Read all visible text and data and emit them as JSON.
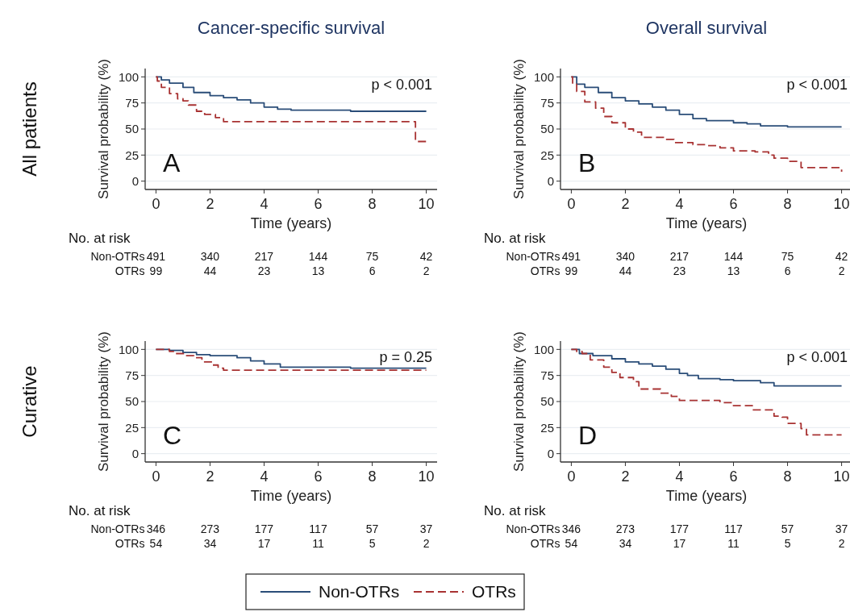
{
  "chart_data": [
    {
      "type": "step",
      "title": "Cancer-specific survival",
      "xlabel": "Time (years)",
      "ylabel": "Survival probability (%)",
      "xlim": [
        -0.4,
        10.4
      ],
      "ylim": [
        -8,
        108
      ],
      "xticks": [
        0,
        2,
        4,
        6,
        8,
        10
      ],
      "yticks": [
        0,
        25,
        50,
        75,
        100
      ],
      "grid": "y",
      "legend": "bottom",
      "marker": "none",
      "annotations": [
        "A",
        "p < 0.001",
        "No. at risk",
        "Non-OTRs",
        "491",
        "340",
        "217",
        "144",
        "75",
        "42",
        "OTRs",
        "99",
        "44",
        "23",
        "13",
        "6",
        "2",
        "All patients"
      ],
      "series": [
        {
          "name": "Non-OTRs",
          "color": "#2a4d78",
          "line_style": "solid",
          "x": [
            0,
            0.2,
            0.5,
            1,
            1.4,
            2,
            2.5,
            3,
            3.5,
            4,
            4.5,
            5,
            7.2,
            10
          ],
          "values": [
            100,
            97,
            94,
            90,
            85,
            82,
            80,
            78,
            75,
            71,
            69,
            68,
            67,
            67
          ]
        },
        {
          "name": "OTRs",
          "color": "#a83232",
          "line_style": "dashed",
          "x": [
            0,
            0.05,
            0.2,
            0.5,
            0.8,
            1,
            1.2,
            1.5,
            1.8,
            2.2,
            2.5,
            9.6,
            10
          ],
          "values": [
            100,
            96,
            90,
            84,
            79,
            77,
            73,
            67,
            64,
            61,
            57,
            38,
            38
          ]
        }
      ]
    },
    {
      "type": "step",
      "title": "Overall survival",
      "xlabel": "Time (years)",
      "ylabel": "Survival probability (%)",
      "xlim": [
        -0.4,
        10.4
      ],
      "ylim": [
        -8,
        108
      ],
      "xticks": [
        0,
        2,
        4,
        6,
        8,
        10
      ],
      "yticks": [
        0,
        25,
        50,
        75,
        100
      ],
      "grid": "y",
      "legend": false,
      "marker": "none",
      "annotations": [
        "B",
        "p < 0.001",
        "No. at risk",
        "Non-OTRs",
        "491",
        "340",
        "217",
        "144",
        "75",
        "42",
        "OTRs",
        "99",
        "44",
        "23",
        "13",
        "6",
        "2"
      ],
      "series": [
        {
          "color": "#2a4d78",
          "line_style": "solid",
          "x": [
            0,
            0.2,
            0.5,
            1,
            1.5,
            2,
            2.5,
            3,
            3.5,
            4,
            4.5,
            5,
            6,
            6.5,
            7,
            8,
            10
          ],
          "values": [
            100,
            93,
            90,
            85,
            80,
            77,
            74,
            71,
            68,
            64,
            60,
            58,
            56,
            55,
            53,
            52,
            52
          ]
        },
        {
          "color": "#a83232",
          "line_style": "dashed",
          "x": [
            0,
            0.05,
            0.2,
            0.5,
            0.9,
            1.2,
            1.5,
            2,
            2.3,
            2.6,
            3.5,
            3.8,
            4.5,
            5,
            5.5,
            6,
            6.8,
            7.3,
            7.5,
            8,
            8.5,
            10
          ],
          "values": [
            100,
            93,
            86,
            76,
            70,
            62,
            56,
            50,
            47,
            42,
            40,
            37,
            35,
            34,
            32,
            29,
            28,
            25,
            22,
            19,
            13,
            9
          ]
        }
      ]
    },
    {
      "type": "step",
      "xlabel": "Time (years)",
      "ylabel": "Survival probability (%)",
      "xlim": [
        -0.4,
        10.4
      ],
      "ylim": [
        -8,
        108
      ],
      "xticks": [
        0,
        2,
        4,
        6,
        8,
        10
      ],
      "yticks": [
        0,
        25,
        50,
        75,
        100
      ],
      "grid": "y",
      "legend": false,
      "marker": "none",
      "annotations": [
        "C",
        "p = 0.25",
        "No. at risk",
        "Non-OTRs",
        "346",
        "273",
        "177",
        "117",
        "57",
        "37",
        "OTRs",
        "54",
        "34",
        "17",
        "11",
        "5",
        "2",
        "Curative"
      ],
      "series": [
        {
          "color": "#2a4d78",
          "line_style": "solid",
          "x": [
            0,
            0.5,
            1,
            1.5,
            2,
            3,
            3.5,
            4,
            4.6,
            7.2,
            10
          ],
          "values": [
            100,
            99,
            97,
            95,
            94,
            92,
            89,
            86,
            83,
            82,
            82
          ]
        },
        {
          "color": "#a83232",
          "line_style": "dashed",
          "x": [
            0,
            0.5,
            0.7,
            1.1,
            1.4,
            1.7,
            2.1,
            2.3,
            2.5,
            10
          ],
          "values": [
            100,
            98,
            96,
            94,
            92,
            88,
            85,
            82,
            80,
            80
          ]
        }
      ]
    },
    {
      "type": "step",
      "xlabel": "Time (years)",
      "ylabel": "Survival probability (%)",
      "xlim": [
        -0.4,
        10.4
      ],
      "ylim": [
        -8,
        108
      ],
      "xticks": [
        0,
        2,
        4,
        6,
        8,
        10
      ],
      "yticks": [
        0,
        25,
        50,
        75,
        100
      ],
      "grid": "y",
      "legend": false,
      "marker": "none",
      "annotations": [
        "D",
        "p < 0.001",
        "No. at risk",
        "Non-OTRs",
        "346",
        "273",
        "177",
        "117",
        "57",
        "37",
        "OTRs",
        "54",
        "34",
        "17",
        "11",
        "5",
        "2"
      ],
      "series": [
        {
          "color": "#2a4d78",
          "line_style": "solid",
          "x": [
            0,
            0.3,
            0.8,
            1.5,
            2,
            2.5,
            3,
            3.5,
            4,
            4.3,
            4.7,
            5.5,
            6,
            7,
            7.5,
            10
          ],
          "values": [
            100,
            96,
            94,
            91,
            88,
            86,
            84,
            81,
            77,
            75,
            72,
            71,
            70,
            68,
            65,
            65
          ]
        },
        {
          "color": "#a83232",
          "line_style": "dashed",
          "x": [
            0,
            0.2,
            0.4,
            0.7,
            1.2,
            1.5,
            1.8,
            2.3,
            2.5,
            3.3,
            3.7,
            4,
            5.5,
            6,
            6.7,
            7.5,
            7.8,
            8,
            8.5,
            8.7,
            10
          ],
          "values": [
            100,
            98,
            96,
            90,
            83,
            78,
            73,
            69,
            62,
            58,
            55,
            51,
            49,
            46,
            42,
            36,
            35,
            29,
            24,
            18,
            18
          ]
        }
      ]
    }
  ]
}
